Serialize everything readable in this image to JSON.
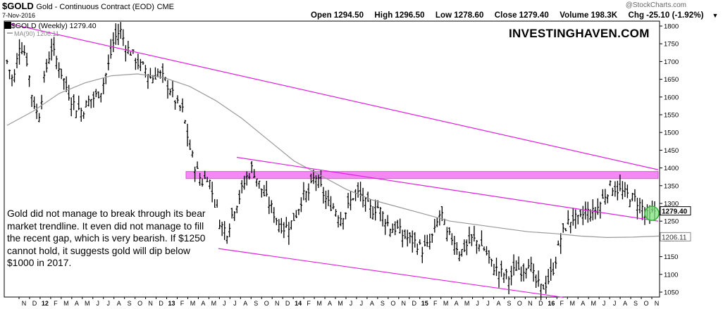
{
  "header": {
    "symbol": "$GOLD",
    "description": "Gold - Continuous Contract (EOD)",
    "exchange": "CME",
    "date": "7-Nov-2016",
    "watermark": "@StockCharts.com",
    "brand": "INVESTINGHAVEN.COM",
    "ohlc": {
      "open_label": "Open",
      "open": "1294.50",
      "high_label": "High",
      "high": "1296.50",
      "low_label": "Low",
      "low": "1278.60",
      "close_label": "Close",
      "close": "1279.40",
      "volume_label": "Volume",
      "volume": "198.3K",
      "chg_label": "Chg",
      "chg": "-25.10 (-1.92%)"
    },
    "legend_price": "$GOLD (Weekly) 1279.40",
    "legend_ma": "MA(90) 1206.11"
  },
  "annotation": "Gold did not manage to break through its bear market trendline. It even did not manage to fill the recent gap, which is very bearish. If $1250 cannot hold, it suggests gold will dip below $1000 in 2017.",
  "chart_data": {
    "type": "bar",
    "ylim": [
      1030,
      1810
    ],
    "y_ticks": [
      1050,
      1100,
      1150,
      1200,
      1250,
      1300,
      1350,
      1400,
      1450,
      1500,
      1550,
      1600,
      1650,
      1700,
      1750,
      1800
    ],
    "x_labels": [
      "N",
      "D",
      "12",
      "F",
      "M",
      "A",
      "M",
      "J",
      "J",
      "A",
      "S",
      "O",
      "N",
      "D",
      "13",
      "F",
      "M",
      "A",
      "M",
      "J",
      "J",
      "A",
      "S",
      "O",
      "N",
      "D",
      "14",
      "F",
      "M",
      "A",
      "M",
      "J",
      "J",
      "A",
      "S",
      "O",
      "N",
      "D",
      "15",
      "F",
      "M",
      "A",
      "M",
      "J",
      "J",
      "A",
      "S",
      "O",
      "N",
      "D",
      "16",
      "F",
      "M",
      "A",
      "M",
      "J",
      "J",
      "A",
      "S",
      "O",
      "N"
    ],
    "year_labels": [
      "12",
      "13",
      "14",
      "15",
      "16"
    ],
    "last_price_label": "1279.40",
    "ma_value_label": "1206.11",
    "price_path": [
      1700,
      1640,
      1750,
      1720,
      1600,
      1540,
      1660,
      1740,
      1700,
      1650,
      1600,
      1570,
      1560,
      1590,
      1600,
      1620,
      1680,
      1760,
      1790,
      1740,
      1720,
      1690,
      1680,
      1650,
      1670,
      1650,
      1620,
      1580,
      1560,
      1460,
      1400,
      1360,
      1380,
      1300,
      1240,
      1220,
      1280,
      1320,
      1370,
      1400,
      1360,
      1320,
      1290,
      1250,
      1230,
      1240,
      1270,
      1320,
      1330,
      1380,
      1340,
      1300,
      1290,
      1260,
      1280,
      1320,
      1330,
      1300,
      1280,
      1290,
      1260,
      1230,
      1230,
      1210,
      1200,
      1190,
      1170,
      1180,
      1220,
      1280,
      1210,
      1200,
      1160,
      1180,
      1200,
      1190,
      1170,
      1130,
      1110,
      1100,
      1090,
      1120,
      1110,
      1140,
      1080,
      1060,
      1080,
      1120,
      1200,
      1240,
      1260,
      1250,
      1280,
      1270,
      1290,
      1320,
      1350,
      1340,
      1330,
      1320,
      1310,
      1290,
      1260,
      1280
    ],
    "ma_path": [
      1520,
      1560,
      1610,
      1640,
      1660,
      1665,
      1655,
      1630,
      1590,
      1540,
      1480,
      1420,
      1380,
      1340,
      1310,
      1290,
      1270,
      1250,
      1240,
      1230,
      1220,
      1215,
      1208,
      1204,
      1205,
      1208
    ],
    "resistance_zone": [
      1370,
      1390
    ],
    "overlays": [
      "resistance-zone",
      "upper-trendline",
      "middle-trendline",
      "lower-channel-line",
      "ma-90",
      "last-bar-highlight"
    ]
  }
}
